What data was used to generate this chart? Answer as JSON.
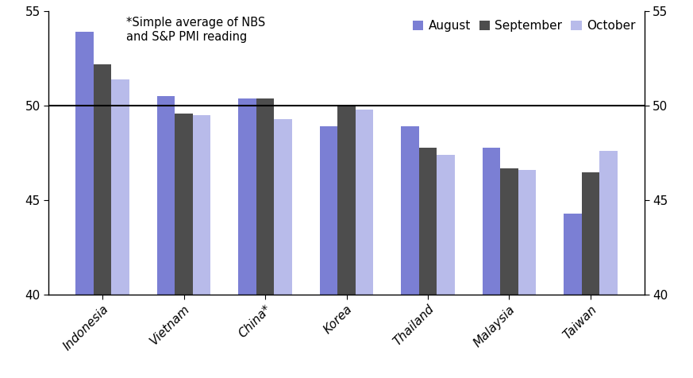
{
  "categories": [
    "Indonesia",
    "Vietnam",
    "China*",
    "Korea",
    "Thailand",
    "Malaysia",
    "Taiwan"
  ],
  "august": [
    53.9,
    50.5,
    50.4,
    48.9,
    48.9,
    47.8,
    44.3
  ],
  "september": [
    52.2,
    49.6,
    50.4,
    50.0,
    47.8,
    46.7,
    46.5
  ],
  "october": [
    51.4,
    49.5,
    49.3,
    49.8,
    47.4,
    46.6,
    47.6
  ],
  "color_august": "#7B7FD4",
  "color_september": "#4D4D4D",
  "color_october": "#B8BBEA",
  "ylim": [
    40,
    55
  ],
  "yticks": [
    40,
    45,
    50,
    55
  ],
  "hline_y": 50,
  "annotation": "*Simple average of NBS\nand S&P PMI reading",
  "legend_labels": [
    "August",
    "September",
    "October"
  ],
  "bar_width": 0.22
}
